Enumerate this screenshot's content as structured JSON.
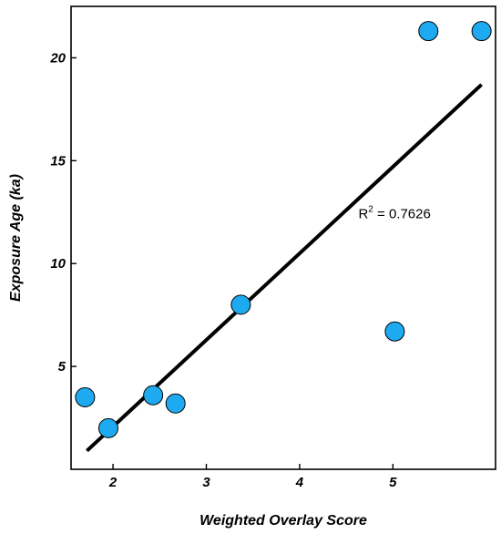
{
  "chart_data": {
    "type": "scatter",
    "title": "",
    "xlabel": "Weighted Overlay Score",
    "ylabel": "Exposure Age (ka)",
    "xlim": [
      1.55,
      6.1
    ],
    "ylim": [
      0,
      22.5
    ],
    "xticks": [
      2,
      3,
      4,
      5
    ],
    "yticks": [
      5,
      10,
      15,
      20
    ],
    "grid": false,
    "points": [
      {
        "x": 1.7,
        "y": 3.5
      },
      {
        "x": 1.95,
        "y": 2.0
      },
      {
        "x": 2.43,
        "y": 3.6
      },
      {
        "x": 2.67,
        "y": 3.2
      },
      {
        "x": 3.37,
        "y": 8.0
      },
      {
        "x": 5.02,
        "y": 6.7
      },
      {
        "x": 5.38,
        "y": 21.3
      },
      {
        "x": 5.95,
        "y": 21.3
      }
    ],
    "trendline": {
      "x": [
        1.72,
        5.95
      ],
      "y": [
        0.9,
        18.7
      ]
    },
    "annotation": {
      "base": "R",
      "sup": "2",
      "text": " = 0.7626",
      "x": 4.63,
      "y": 12.2
    },
    "marker_color": "#1eaaf1",
    "marker_edge_color": "#000000",
    "line_color": "#000000"
  }
}
